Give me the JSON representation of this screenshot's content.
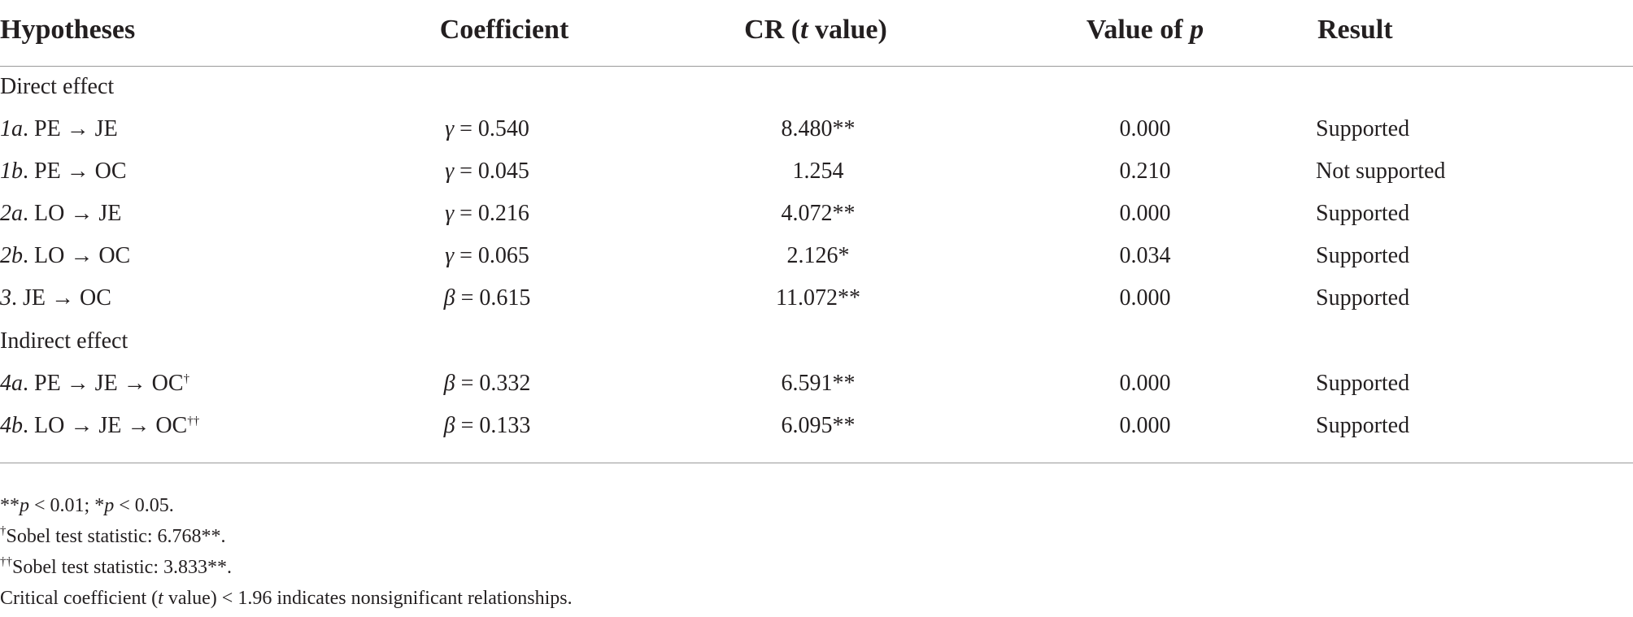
{
  "table": {
    "headers": {
      "hypotheses": "Hypotheses",
      "coefficient": "Coefficient",
      "cr_prefix": "CR (",
      "cr_t": "t",
      "cr_suffix": " value)",
      "pvalue_prefix": "Value of ",
      "pvalue_p": "p",
      "result": "Result"
    },
    "sections": {
      "direct": "Direct effect",
      "indirect": "Indirect effect"
    },
    "rows": [
      {
        "id_italic": "1a",
        "path": ". PE → JE",
        "sup": "",
        "coef_symbol": "γ",
        "coef_value": " = 0.540",
        "cr": "8.480**",
        "p": "0.000",
        "result": "Supported"
      },
      {
        "id_italic": "1b",
        "path": ". PE → OC",
        "sup": "",
        "coef_symbol": "γ",
        "coef_value": " = 0.045",
        "cr": "1.254",
        "p": "0.210",
        "result": "Not supported"
      },
      {
        "id_italic": "2a",
        "path": ". LO → JE",
        "sup": "",
        "coef_symbol": "γ",
        "coef_value": " = 0.216",
        "cr": "4.072**",
        "p": "0.000",
        "result": "Supported"
      },
      {
        "id_italic": "2b",
        "path": ". LO → OC",
        "sup": "",
        "coef_symbol": "γ",
        "coef_value": " = 0.065",
        "cr": "2.126*",
        "p": "0.034",
        "result": "Supported"
      },
      {
        "id_italic": "3",
        "path": ". JE → OC",
        "sup": "",
        "coef_symbol": "β",
        "coef_value": " = 0.615",
        "cr": "11.072**",
        "p": "0.000",
        "result": "Supported"
      },
      {
        "id_italic": "4a",
        "path": ". PE → JE → OC",
        "sup": "†",
        "coef_symbol": "β",
        "coef_value": " = 0.332",
        "cr": "6.591**",
        "p": "0.000",
        "result": "Supported"
      },
      {
        "id_italic": "4b",
        "path": ". LO → JE → OC",
        "sup": "††",
        "coef_symbol": "β",
        "coef_value": " = 0.133",
        "cr": "6.095**",
        "p": "0.000",
        "result": "Supported"
      }
    ]
  },
  "notes": {
    "sig_a": "**",
    "sig_p1": "p",
    "sig_b": " < 0.01; *",
    "sig_p2": "p",
    "sig_c": " < 0.05.",
    "sobel1_sup": "†",
    "sobel1_text": "Sobel test statistic: 6.768**.",
    "sobel2_sup": "††",
    "sobel2_text": "Sobel test statistic: 3.833**.",
    "critical_a": "Critical coefficient (",
    "critical_t": "t",
    "critical_b": " value) < 1.96 indicates nonsignificant relationships."
  }
}
